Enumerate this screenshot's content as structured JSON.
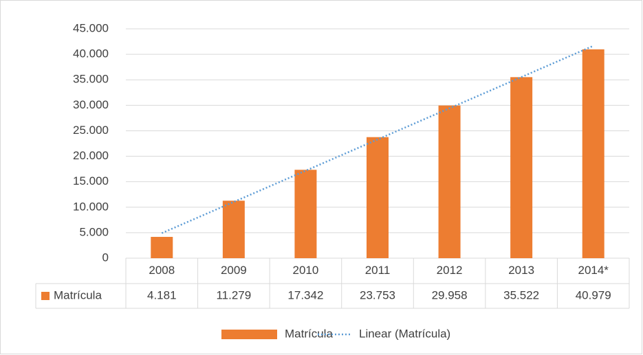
{
  "chart_data": {
    "type": "bar",
    "categories": [
      "2008",
      "2009",
      "2010",
      "2011",
      "2012",
      "2013",
      "2014*"
    ],
    "series": [
      {
        "name": "Matrícula",
        "color": "#ed7d31",
        "values": [
          4181,
          11279,
          17342,
          23753,
          29958,
          35522,
          40979
        ],
        "value_labels": [
          "4.181",
          "11.279",
          "17.342",
          "23.753",
          "29.958",
          "35.522",
          "40.979"
        ]
      }
    ],
    "trendline": {
      "name": "Linear (Matrícula)",
      "color": "#5b9bd5",
      "values": [
        4913,
        11038,
        17163,
        23288,
        29413,
        35538,
        41662
      ]
    },
    "ylim": [
      0,
      45000
    ],
    "yticks": [
      0,
      {
        "value": 5000,
        "label": "5.000"
      },
      {
        "value": 10000,
        "label": "10.000"
      },
      {
        "value": 15000,
        "label": "15.000"
      },
      {
        "value": 20000,
        "label": "20.000"
      },
      {
        "value": 25000,
        "label": "25.000"
      },
      {
        "value": 30000,
        "label": "30.000"
      },
      {
        "value": 35000,
        "label": "35.000"
      },
      {
        "value": 40000,
        "label": "40.000"
      },
      {
        "value": 45000,
        "label": "45.000"
      }
    ],
    "grid": true,
    "legend": "bottom"
  }
}
